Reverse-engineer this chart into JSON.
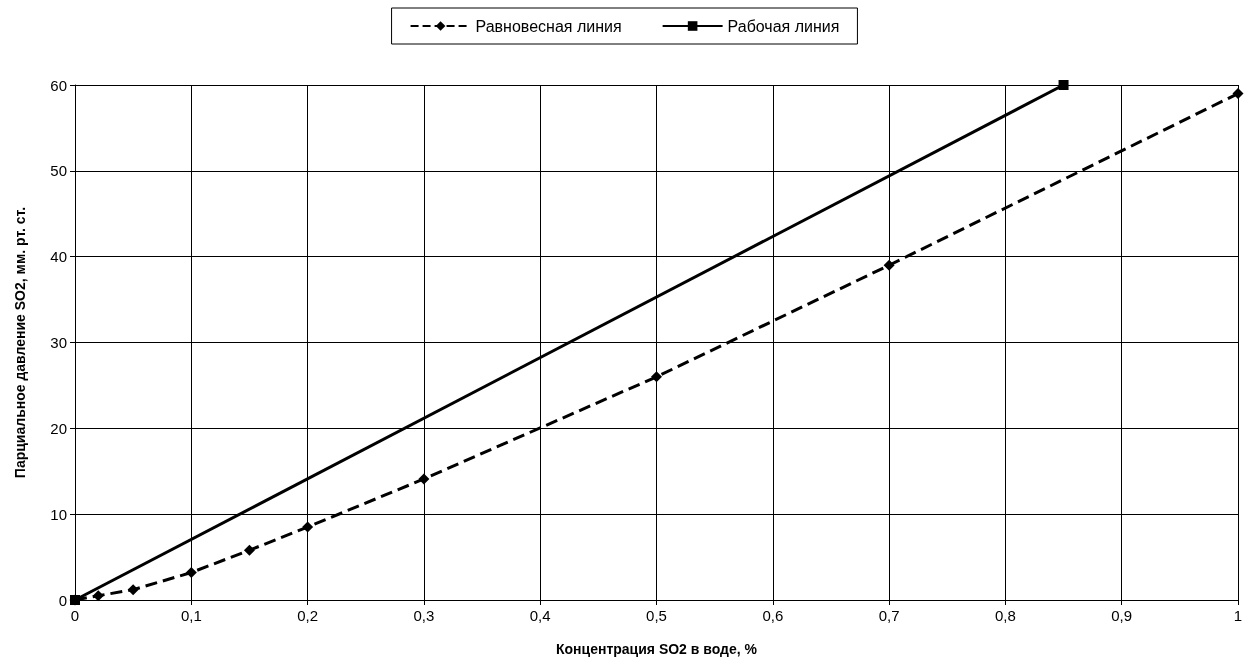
{
  "chart_data": {
    "type": "line",
    "xlabel": "Концентрация SO2 в воде, %",
    "ylabel": "Парциальное давление SO2, мм. рт. ст.",
    "series": [
      {
        "name": "Равновесная линия",
        "color": "#000000",
        "marker": "diamond",
        "line_style": "dashed",
        "x": [
          0,
          0.02,
          0.05,
          0.1,
          0.15,
          0.2,
          0.3,
          0.5,
          0.7,
          1
        ],
        "values": [
          0,
          0.5,
          1.2,
          3.2,
          5.8,
          8.5,
          14.1,
          26,
          39,
          59
        ]
      },
      {
        "name": "Рабочая линия",
        "color": "#000000",
        "marker": "square",
        "line_style": "solid",
        "x": [
          0,
          0.85
        ],
        "values": [
          0,
          60
        ]
      }
    ],
    "xlim": [
      0,
      1
    ],
    "xticks": [
      0,
      {
        "value": 0.1,
        "label": "0,1"
      },
      {
        "value": 0.2,
        "label": "0,2"
      },
      {
        "value": 0.3,
        "label": "0,3"
      },
      {
        "value": 0.4,
        "label": "0,4"
      },
      {
        "value": 0.5,
        "label": "0,5"
      },
      {
        "value": 0.6,
        "label": "0,6"
      },
      {
        "value": 0.7,
        "label": "0,7"
      },
      {
        "value": 0.8,
        "label": "0,8"
      },
      {
        "value": 0.9,
        "label": "0,9"
      },
      1
    ],
    "ylim": [
      0,
      60
    ],
    "yticks": [
      0,
      10,
      20,
      30,
      40,
      50,
      60
    ],
    "grid": true,
    "legend": "top"
  }
}
